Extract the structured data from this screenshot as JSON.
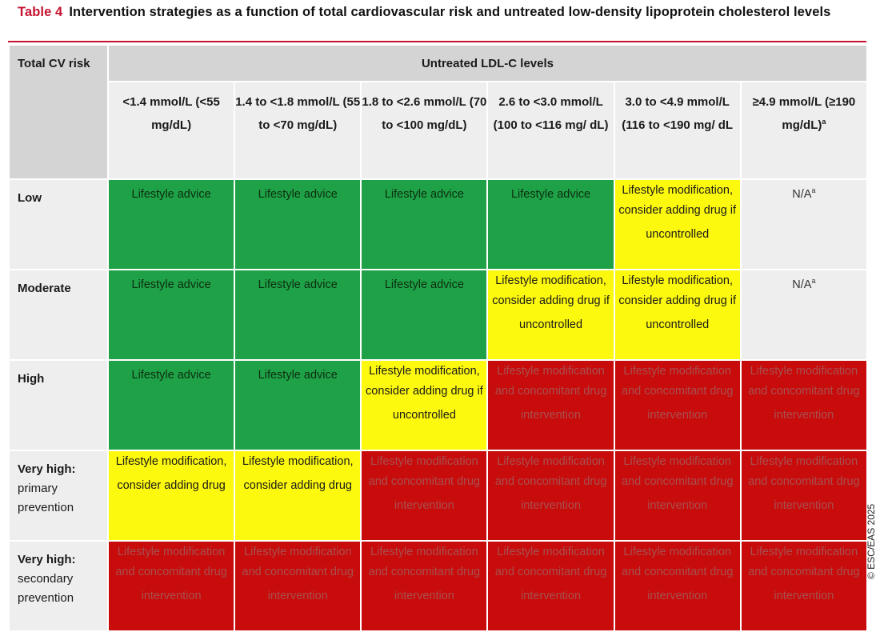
{
  "caption": {
    "label": "Table 4",
    "text": "Intervention strategies as a function of total cardiovascular risk and untreated low-density lipoprotein cholesterol levels"
  },
  "colors": {
    "accent": "#c4122f",
    "green": "#1fa247",
    "yellow": "#fdf90e",
    "red": "#c80b0b",
    "gray": "#eeeeee"
  },
  "header": {
    "corner": "Total CV risk",
    "group": "Untreated LDL-C levels",
    "columns": [
      {
        "text": "<1.4 mmol/L (<55 mg/dL)",
        "sup": ""
      },
      {
        "text": "1.4 to <1.8 mmol/L (55 to <70 mg/dL)",
        "sup": ""
      },
      {
        "text": "1.8 to <2.6 mmol/L (70 to <100 mg/dL)",
        "sup": ""
      },
      {
        "text": "2.6 to <3.0 mmol/L (100 to <116 mg/ dL)",
        "sup": ""
      },
      {
        "text": "3.0 to <4.9 mmol/L (116 to <190 mg/ dL",
        "sup": ""
      },
      {
        "text": "≥4.9 mmol/L (≥190 mg/dL)",
        "sup": "a"
      }
    ]
  },
  "rows": [
    {
      "label": "Low",
      "sub": "",
      "cells": [
        {
          "text": "Lifestyle advice",
          "sup": "",
          "color": "green"
        },
        {
          "text": "Lifestyle advice",
          "sup": "",
          "color": "green"
        },
        {
          "text": "Lifestyle advice",
          "sup": "",
          "color": "green"
        },
        {
          "text": "Lifestyle advice",
          "sup": "",
          "color": "green"
        },
        {
          "text": "Lifestyle modification, consider adding drug if uncontrolled",
          "sup": "",
          "color": "yellow"
        },
        {
          "text": "N/A",
          "sup": "a",
          "color": "gray"
        }
      ]
    },
    {
      "label": "Moderate",
      "sub": "",
      "cells": [
        {
          "text": "Lifestyle advice",
          "sup": "",
          "color": "green"
        },
        {
          "text": "Lifestyle advice",
          "sup": "",
          "color": "green"
        },
        {
          "text": "Lifestyle advice",
          "sup": "",
          "color": "green"
        },
        {
          "text": "Lifestyle modification, consider adding drug if uncontrolled",
          "sup": "",
          "color": "yellow"
        },
        {
          "text": "Lifestyle modification, consider adding drug if uncontrolled",
          "sup": "",
          "color": "yellow"
        },
        {
          "text": "N/A",
          "sup": "a",
          "color": "gray"
        }
      ]
    },
    {
      "label": "High",
      "sub": "",
      "cells": [
        {
          "text": "Lifestyle advice",
          "sup": "",
          "color": "green"
        },
        {
          "text": "Lifestyle advice",
          "sup": "",
          "color": "green"
        },
        {
          "text": "Lifestyle modification, consider adding drug if uncontrolled",
          "sup": "",
          "color": "yellow"
        },
        {
          "text": "Lifestyle modification and concomitant drug intervention",
          "sup": "",
          "color": "red"
        },
        {
          "text": "Lifestyle modification and concomitant drug intervention",
          "sup": "",
          "color": "red"
        },
        {
          "text": "Lifestyle modification and concomitant drug intervention",
          "sup": "",
          "color": "red"
        }
      ]
    },
    {
      "label": "Very high:",
      "sub": "primary prevention",
      "cells": [
        {
          "text": "Lifestyle modification, consider adding drug",
          "sup": "",
          "color": "yellow"
        },
        {
          "text": "Lifestyle modification, consider adding drug",
          "sup": "",
          "color": "yellow"
        },
        {
          "text": "Lifestyle modification and concomitant drug intervention",
          "sup": "",
          "color": "red"
        },
        {
          "text": "Lifestyle modification and concomitant drug intervention",
          "sup": "",
          "color": "red"
        },
        {
          "text": "Lifestyle modification and concomitant drug intervention",
          "sup": "",
          "color": "red"
        },
        {
          "text": "Lifestyle modification and concomitant drug intervention",
          "sup": "",
          "color": "red"
        }
      ]
    },
    {
      "label": "Very high:",
      "sub": "secondary prevention",
      "cells": [
        {
          "text": "Lifestyle modification and concomitant drug intervention",
          "sup": "",
          "color": "red"
        },
        {
          "text": "Lifestyle modification and concomitant drug intervention",
          "sup": "",
          "color": "red"
        },
        {
          "text": "Lifestyle modification and concomitant drug intervention",
          "sup": "",
          "color": "red"
        },
        {
          "text": "Lifestyle modification and concomitant drug intervention",
          "sup": "",
          "color": "red"
        },
        {
          "text": "Lifestyle modification and concomitant drug intervention",
          "sup": "",
          "color": "red"
        },
        {
          "text": "Lifestyle modification and concomitant drug intervention",
          "sup": "",
          "color": "red"
        }
      ]
    }
  ],
  "watermark": "© ESC/EAS 2025"
}
